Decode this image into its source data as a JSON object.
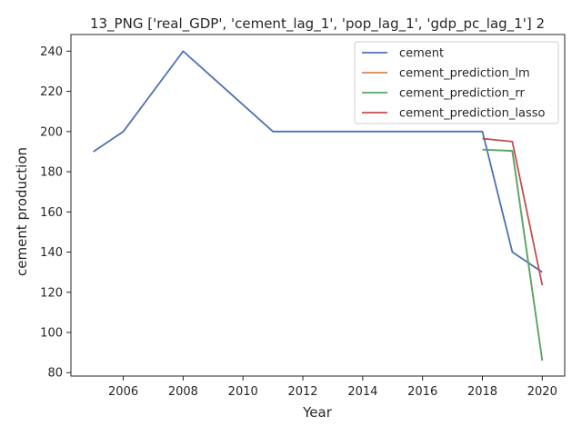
{
  "chart_data": {
    "type": "line",
    "title": "13_PNG ['real_GDP', 'cement_lag_1', 'pop_lag_1', 'gdp_pc_lag_1'] 2",
    "xlabel": "Year",
    "ylabel": "cement production",
    "xlim": [
      2004.25,
      2020.75
    ],
    "ylim": [
      78.3,
      248.3
    ],
    "xticks": [
      2006,
      2008,
      2010,
      2012,
      2014,
      2016,
      2018,
      2020
    ],
    "yticks": [
      80,
      100,
      120,
      140,
      160,
      180,
      200,
      220,
      240
    ],
    "grid": false,
    "legend_position": "top-right",
    "series": [
      {
        "name": "cement",
        "color": "#4c72b0",
        "x": [
          2005,
          2006,
          2008,
          2011,
          2018,
          2019,
          2020
        ],
        "y": [
          190,
          200,
          240,
          200,
          200,
          140,
          130
        ]
      },
      {
        "name": "cement_prediction_lm",
        "color": "#dd8452",
        "x": [
          2018,
          2019,
          2020
        ],
        "y": [
          191,
          190.5,
          86
        ]
      },
      {
        "name": "cement_prediction_rr",
        "color": "#55a868",
        "x": [
          2018,
          2019,
          2020
        ],
        "y": [
          191,
          190.3,
          86
        ]
      },
      {
        "name": "cement_prediction_lasso",
        "color": "#c44e52",
        "x": [
          2018,
          2019,
          2020
        ],
        "y": [
          196.5,
          195,
          123.5
        ]
      }
    ]
  }
}
